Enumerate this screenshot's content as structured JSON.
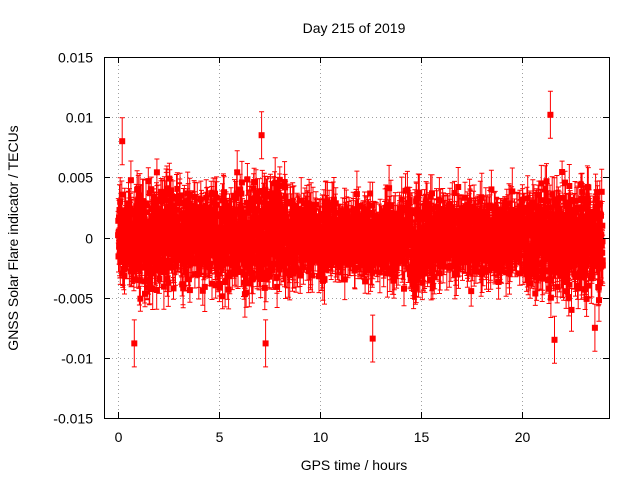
{
  "chart_data": {
    "type": "scatter",
    "title": "Day 215 of 2019",
    "xlabel": "GPS time / hours",
    "ylabel": "GNSS Solar Flare indicator / TECUs",
    "xlim": [
      -0.7,
      24.3
    ],
    "ylim": [
      -0.015,
      0.015
    ],
    "xticks": [
      0,
      5,
      10,
      15,
      20
    ],
    "xtick_labels": [
      "0",
      "5",
      "10",
      "15",
      "20"
    ],
    "yticks": [
      -0.015,
      -0.01,
      -0.005,
      0,
      0.005,
      0.01,
      0.015
    ],
    "ytick_labels": [
      "-0.015",
      "-0.01",
      "-0.005",
      "0",
      "0.005",
      "0.01",
      "0.015"
    ],
    "grid": true,
    "marker": "square",
    "error_bars": true,
    "color": "#ff0000",
    "series": [
      {
        "name": "GNSS Solar Flare indicator",
        "x_range_hours": [
          0,
          24
        ],
        "sample_interval_hours": 0.0083,
        "typical_abs_value": 0.003,
        "typical_error": 0.0015,
        "notable_points": [
          {
            "x": 0.2,
            "y": 0.008
          },
          {
            "x": 0.8,
            "y": -0.0088
          },
          {
            "x": 7.1,
            "y": 0.0085
          },
          {
            "x": 7.3,
            "y": -0.0088
          },
          {
            "x": 12.6,
            "y": -0.0084
          },
          {
            "x": 21.4,
            "y": 0.0102
          },
          {
            "x": 21.6,
            "y": -0.0085
          },
          {
            "x": 23.6,
            "y": -0.0075
          }
        ]
      }
    ]
  }
}
